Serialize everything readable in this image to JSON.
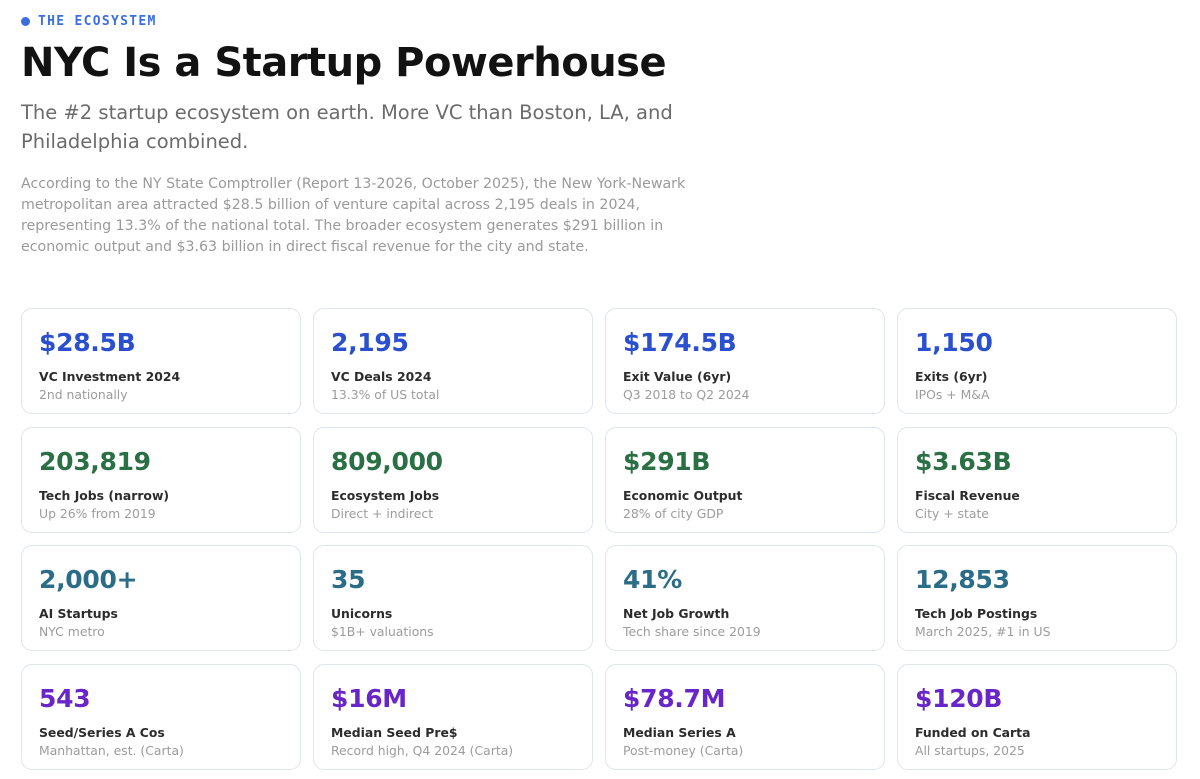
{
  "header": {
    "eyebrow": "THE ECOSYSTEM",
    "title": "NYC Is a Startup Powerhouse",
    "subtitle": "The #2 startup ecosystem on earth. More VC than Boston, LA, and Philadelphia combined.",
    "body": "According to the NY State Comptroller (Report 13-2026, October 2025), the New York-Newark metropolitan area attracted $28.5 billion of venture capital across 2,195 deals in 2024, representing 13.3% of the national total. The broader ecosystem generates $291 billion in economic output and $3.63 billion in direct fiscal revenue for the city and state."
  },
  "colors": {
    "accent": "#3b6fe0",
    "blue": "#2a4fcf",
    "green": "#2a7044",
    "teal": "#2b6c86",
    "purple": "#6826c9"
  },
  "stats": [
    {
      "value": "$28.5B",
      "title": "VC Investment 2024",
      "sub": "2nd nationally",
      "color": "blue"
    },
    {
      "value": "2,195",
      "title": "VC Deals 2024",
      "sub": "13.3% of US total",
      "color": "blue"
    },
    {
      "value": "$174.5B",
      "title": "Exit Value (6yr)",
      "sub": "Q3 2018 to Q2 2024",
      "color": "blue"
    },
    {
      "value": "1,150",
      "title": "Exits (6yr)",
      "sub": "IPOs + M&A",
      "color": "blue"
    },
    {
      "value": "203,819",
      "title": "Tech Jobs (narrow)",
      "sub": "Up 26% from 2019",
      "color": "green"
    },
    {
      "value": "809,000",
      "title": "Ecosystem Jobs",
      "sub": "Direct + indirect",
      "color": "green"
    },
    {
      "value": "$291B",
      "title": "Economic Output",
      "sub": "28% of city GDP",
      "color": "green"
    },
    {
      "value": "$3.63B",
      "title": "Fiscal Revenue",
      "sub": "City + state",
      "color": "green"
    },
    {
      "value": "2,000+",
      "title": "AI Startups",
      "sub": "NYC metro",
      "color": "teal"
    },
    {
      "value": "35",
      "title": "Unicorns",
      "sub": "$1B+ valuations",
      "color": "teal"
    },
    {
      "value": "41%",
      "title": "Net Job Growth",
      "sub": "Tech share since 2019",
      "color": "teal"
    },
    {
      "value": "12,853",
      "title": "Tech Job Postings",
      "sub": "March 2025, #1 in US",
      "color": "teal"
    },
    {
      "value": "543",
      "title": "Seed/Series A Cos",
      "sub": "Manhattan, est. (Carta)",
      "color": "purple"
    },
    {
      "value": "$16M",
      "title": "Median Seed Pre$",
      "sub": "Record high, Q4 2024 (Carta)",
      "color": "purple"
    },
    {
      "value": "$78.7M",
      "title": "Median Series A",
      "sub": "Post-money (Carta)",
      "color": "purple"
    },
    {
      "value": "$120B",
      "title": "Funded on Carta",
      "sub": "All startups, 2025",
      "color": "purple"
    }
  ]
}
